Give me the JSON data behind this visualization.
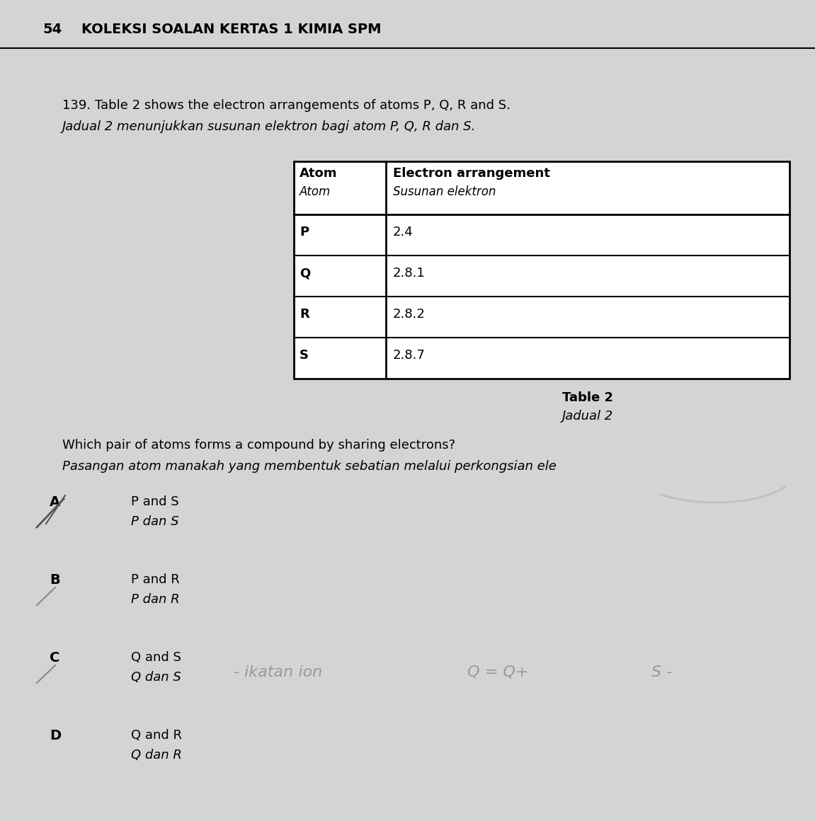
{
  "background_color": "#d4d4d4",
  "page_number": "54",
  "header": "KOLEKSI SOALAN KERTAS 1 KIMIA SPM",
  "question_number": "139.",
  "question_line1": "Table 2 shows the electron arrangements of atoms P, Q, R and S.",
  "question_line2_italic": "Jadual 2 menunjukkan susunan elektron bagi atom P, Q, R dan S.",
  "table_header_col1_bold": "Atom",
  "table_header_col1_italic": "Atom",
  "table_header_col2_bold": "Electron arrangement",
  "table_header_col2_italic": "Susunan elektron",
  "table_data": [
    [
      "P",
      "2.4"
    ],
    [
      "Q",
      "2.8.1"
    ],
    [
      "R",
      "2.8.2"
    ],
    [
      "S",
      "2.8.7"
    ]
  ],
  "table_caption1": "Table 2",
  "table_caption2": "Jadual 2",
  "subq_line1": "Which pair of atoms forms a compound by sharing electrons?",
  "subq_line2_italic": "Pasangan atom manakah yang membentuk sebatian melalui perkongsian ele",
  "options": [
    {
      "letter": "A",
      "line1": "P and S",
      "line2_italic": "P dan S"
    },
    {
      "letter": "B",
      "line1": "P and R",
      "line2_italic": "P dan R"
    },
    {
      "letter": "C",
      "line1": "Q and S",
      "line2_italic": "Q dan S"
    },
    {
      "letter": "D",
      "line1": "Q and R",
      "line2_italic": "Q dan R"
    }
  ],
  "handwriting_color": "#999999",
  "handwriting1": "- ikatan ion",
  "handwriting2": "Q = Q+",
  "handwriting3": "S -"
}
